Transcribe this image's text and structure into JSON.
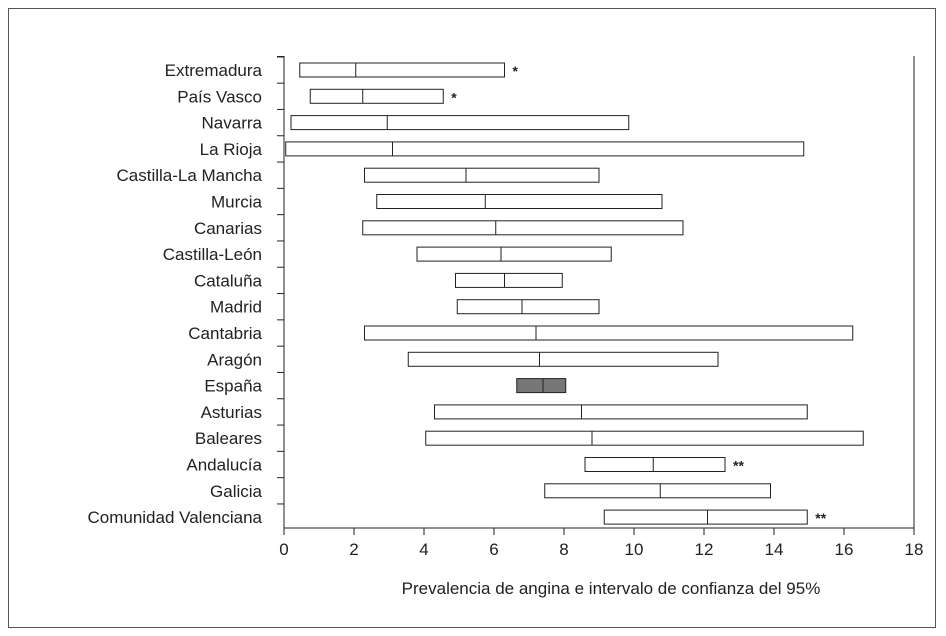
{
  "chart_data": {
    "type": "bar",
    "title": "",
    "xlabel": "Prevalencia de angina e intervalo de confianza del 95%",
    "ylabel": "",
    "xlim": [
      0,
      18
    ],
    "xticks": [
      0,
      2,
      4,
      6,
      8,
      10,
      12,
      14,
      16,
      18
    ],
    "grid": false,
    "highlight_color": "#777777",
    "box_color": "#ffffff",
    "categories": [
      "Extremadura",
      "País Vasco",
      "Navarra",
      "La Rioja",
      "Castilla-La Mancha",
      "Murcia",
      "Canarias",
      "Castilla-León",
      "Cataluña",
      "Madrid",
      "Cantabria",
      "Aragón",
      "España",
      "Asturias",
      "Baleares",
      "Andalucía",
      "Galicia",
      "Comunidad Valenciana"
    ],
    "series": [
      {
        "values": [
          {
            "low": 0.45,
            "mid": 2.05,
            "high": 6.3,
            "ann": "*",
            "highlight": false
          },
          {
            "low": 0.75,
            "mid": 2.25,
            "high": 4.55,
            "ann": "*",
            "highlight": false
          },
          {
            "low": 0.2,
            "mid": 2.95,
            "high": 9.85,
            "ann": "",
            "highlight": false
          },
          {
            "low": 0.05,
            "mid": 3.1,
            "high": 14.85,
            "ann": "",
            "highlight": false
          },
          {
            "low": 2.3,
            "mid": 5.2,
            "high": 9.0,
            "ann": "",
            "highlight": false
          },
          {
            "low": 2.65,
            "mid": 5.75,
            "high": 10.8,
            "ann": "",
            "highlight": false
          },
          {
            "low": 2.25,
            "mid": 6.05,
            "high": 11.4,
            "ann": "",
            "highlight": false
          },
          {
            "low": 3.8,
            "mid": 6.2,
            "high": 9.35,
            "ann": "",
            "highlight": false
          },
          {
            "low": 4.9,
            "mid": 6.3,
            "high": 7.95,
            "ann": "",
            "highlight": false
          },
          {
            "low": 4.95,
            "mid": 6.8,
            "high": 9.0,
            "ann": "",
            "highlight": false
          },
          {
            "low": 2.3,
            "mid": 7.2,
            "high": 16.25,
            "ann": "",
            "highlight": false
          },
          {
            "low": 3.55,
            "mid": 7.3,
            "high": 12.4,
            "ann": "",
            "highlight": false
          },
          {
            "low": 6.65,
            "mid": 7.4,
            "high": 8.05,
            "ann": "",
            "highlight": true
          },
          {
            "low": 4.3,
            "mid": 8.5,
            "high": 14.95,
            "ann": "",
            "highlight": false
          },
          {
            "low": 4.05,
            "mid": 8.8,
            "high": 16.55,
            "ann": "",
            "highlight": false
          },
          {
            "low": 8.6,
            "mid": 10.55,
            "high": 12.6,
            "ann": "**",
            "highlight": false
          },
          {
            "low": 7.45,
            "mid": 10.75,
            "high": 13.9,
            "ann": "",
            "highlight": false
          },
          {
            "low": 9.15,
            "mid": 12.1,
            "high": 14.95,
            "ann": "**",
            "highlight": false
          }
        ]
      }
    ]
  }
}
